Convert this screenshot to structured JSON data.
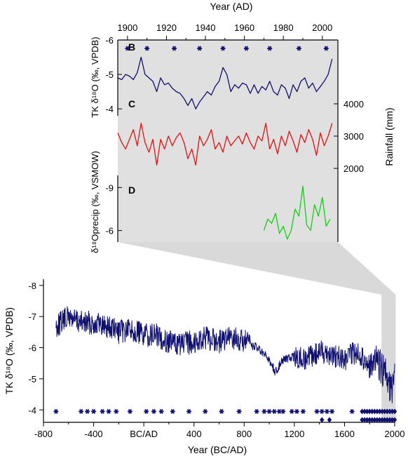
{
  "colors": {
    "background": "#ffffff",
    "panel_bg": "#e0e0e0",
    "callout_bg": "#d9d9d9",
    "axis": "#000000",
    "tk": "#101070",
    "rain": "#e81010",
    "precip": "#12d012",
    "marker": "#101070"
  },
  "chart_data": [
    {
      "type": "line",
      "panel": "top",
      "xlabel": "Year (AD)",
      "xlim": [
        1895,
        2008
      ],
      "x_ticks": [
        1900,
        1920,
        1940,
        1960,
        1980,
        2000
      ],
      "subplots": [
        {
          "letter": "B",
          "ylabel": "TK δ¹⁸O (‰, VPDB)",
          "ylim": [
            -6,
            -3.8
          ],
          "y_inverted": true,
          "y_ticks": [
            -6,
            -5,
            -4
          ],
          "y_tick_labels": [
            "-6",
            "-5",
            "-4"
          ],
          "markers_x": [
            1900,
            1910,
            1924,
            1937,
            1949,
            1961,
            1973,
            1988,
            2002
          ],
          "marker_y": -6,
          "series": [
            {
              "color": "#101070",
              "x": [
                1895,
                1897,
                1899,
                1901,
                1903,
                1905,
                1907,
                1909,
                1911,
                1913,
                1915,
                1917,
                1919,
                1921,
                1923,
                1925,
                1927,
                1929,
                1931,
                1933,
                1935,
                1937,
                1939,
                1941,
                1943,
                1945,
                1947,
                1949,
                1951,
                1953,
                1955,
                1957,
                1959,
                1961,
                1963,
                1965,
                1967,
                1969,
                1971,
                1973,
                1975,
                1977,
                1979,
                1981,
                1983,
                1985,
                1987,
                1989,
                1991,
                1993,
                1995,
                1997,
                1999,
                2001,
                2003,
                2005
              ],
              "y": [
                -4.9,
                -4.85,
                -5.0,
                -4.95,
                -4.85,
                -5.05,
                -5.5,
                -5.0,
                -4.9,
                -4.8,
                -4.5,
                -4.9,
                -4.7,
                -4.75,
                -4.6,
                -4.5,
                -4.45,
                -4.3,
                -4.1,
                -4.3,
                -4.0,
                -4.2,
                -4.35,
                -4.5,
                -4.4,
                -4.65,
                -4.8,
                -5.2,
                -5.0,
                -4.5,
                -4.7,
                -4.6,
                -4.75,
                -4.7,
                -4.45,
                -4.7,
                -4.45,
                -4.65,
                -4.55,
                -4.8,
                -4.5,
                -4.4,
                -4.7,
                -4.6,
                -4.3,
                -4.7,
                -4.5,
                -4.8,
                -4.9,
                -4.6,
                -4.75,
                -4.5,
                -4.65,
                -4.8,
                -5.0,
                -5.45
              ]
            }
          ]
        },
        {
          "letter": "C",
          "ylabel": "Rainfall (mm)",
          "ylim": [
            1500,
            4500
          ],
          "y_ticks": [
            2000,
            3000,
            4000
          ],
          "y_tick_labels": [
            "2000",
            "3000",
            "4000"
          ],
          "series": [
            {
              "color": "#e81010",
              "x": [
                1895,
                1897,
                1899,
                1901,
                1903,
                1905,
                1907,
                1909,
                1911,
                1913,
                1915,
                1917,
                1919,
                1921,
                1923,
                1925,
                1927,
                1929,
                1931,
                1933,
                1935,
                1937,
                1939,
                1941,
                1943,
                1945,
                1947,
                1949,
                1951,
                1953,
                1955,
                1957,
                1959,
                1961,
                1963,
                1965,
                1967,
                1969,
                1971,
                1973,
                1975,
                1977,
                1979,
                1981,
                1983,
                1985,
                1987,
                1989,
                1991,
                1993,
                1995,
                1997,
                1999,
                2001,
                2003,
                2005
              ],
              "y": [
                3100,
                2800,
                2600,
                2900,
                3200,
                2700,
                3400,
                2800,
                2500,
                2900,
                2100,
                2900,
                2600,
                3000,
                2700,
                2950,
                3100,
                2800,
                2300,
                2600,
                2100,
                3000,
                2700,
                2900,
                3200,
                2600,
                2800,
                2500,
                3000,
                2700,
                2850,
                3000,
                2750,
                3100,
                2800,
                2600,
                3000,
                2850,
                3400,
                2600,
                2900,
                2450,
                3000,
                2700,
                3150,
                2850,
                2500,
                3050,
                2800,
                3200,
                2900,
                2400,
                3100,
                2700,
                3000,
                3400
              ]
            }
          ]
        },
        {
          "letter": "D",
          "ylabel": "δ¹⁸Oprecip (‰, VSMOW)",
          "ylim": [
            -5.2,
            -9.6
          ],
          "y_inverted": true,
          "y_ticks": [
            -9,
            -6
          ],
          "y_tick_labels": [
            "-9",
            "-6"
          ],
          "series": [
            {
              "color": "#12d012",
              "x": [
                1970,
                1972,
                1974,
                1976,
                1978,
                1980,
                1982,
                1984,
                1986,
                1988,
                1990,
                1992,
                1994,
                1996,
                1998,
                2000,
                2002,
                2004
              ],
              "y": [
                -6.0,
                -6.8,
                -6.5,
                -7.2,
                -5.8,
                -6.3,
                -5.4,
                -6.0,
                -7.5,
                -7.0,
                -9.1,
                -6.4,
                -6.0,
                -7.8,
                -7.0,
                -8.3,
                -6.3,
                -6.8
              ]
            }
          ]
        }
      ]
    },
    {
      "type": "line",
      "panel": "bottom",
      "xlabel": "Year (BC/AD)",
      "ylabel": "TK δ¹⁸O (‰, VPDB)",
      "xlim": [
        -800,
        2000
      ],
      "x_ticks": [
        -800,
        -400,
        0,
        400,
        800,
        1200,
        1600,
        2000
      ],
      "x_tick_labels": [
        "-800",
        "-400",
        "BC/AD",
        "400",
        "800",
        "1200",
        "1600",
        "2000"
      ],
      "ylim": [
        -8.2,
        -3.6
      ],
      "y_inverted": true,
      "y_ticks": [
        -8,
        -7,
        -6,
        -5,
        -4
      ],
      "y_tick_labels": [
        "-8",
        "-7",
        "-6",
        "-5",
        "-4"
      ],
      "anchor_x": [
        -700,
        -600,
        -500,
        -400,
        -300,
        -200,
        -100,
        0,
        100,
        200,
        300,
        400,
        500,
        600,
        700,
        800,
        900,
        1000,
        1050,
        1100,
        1200,
        1300,
        1400,
        1500,
        1600,
        1700,
        1800,
        1850,
        1900,
        1950,
        1980,
        2000
      ],
      "anchor_y": [
        -6.7,
        -7.0,
        -6.8,
        -6.8,
        -6.7,
        -6.5,
        -6.6,
        -6.4,
        -6.4,
        -6.2,
        -6.1,
        -6.2,
        -6.3,
        -6.2,
        -6.3,
        -6.2,
        -6.0,
        -5.6,
        -5.2,
        -5.6,
        -5.7,
        -5.6,
        -5.9,
        -5.8,
        -5.6,
        -5.9,
        -5.4,
        -5.6,
        -5.3,
        -5.0,
        -4.5,
        -5.2
      ],
      "markers_row1_x": [
        -700,
        -500,
        -450,
        -400,
        -330,
        -280,
        -220,
        -110,
        20,
        80,
        140,
        230,
        360,
        490,
        620,
        760,
        900,
        960,
        1000,
        1040,
        1080,
        1110,
        1180,
        1220,
        1270,
        1380,
        1420,
        1460,
        1500,
        1660,
        1740,
        1760,
        1780,
        1800,
        1820,
        1840,
        1860,
        1880,
        1900,
        1920,
        1940,
        1960,
        1980,
        2000
      ],
      "markers_row1_y": -3.95,
      "markers_row2_x": [
        1420,
        1480,
        1740,
        1760,
        1780,
        1800,
        1820,
        1840,
        1860,
        1880,
        1900,
        1920,
        1940,
        1960,
        1980,
        2000
      ],
      "markers_row2_y": -3.68,
      "highlight_xrange": [
        1895,
        2008
      ]
    }
  ]
}
